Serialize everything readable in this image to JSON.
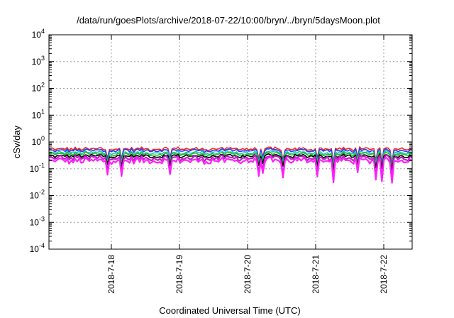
{
  "chart_data": {
    "type": "line",
    "title": "/data/run/goesPlots/archive/2018-07-22/10:00/bryn/../bryn/5daysMoon.plot",
    "xlabel": "Coordinated Universal Time (UTC)",
    "ylabel": "cSv/day",
    "y_scale": "log",
    "ylim": [
      0.0001,
      10000
    ],
    "y_tick_labels": [
      {
        "base": "10",
        "exp": "4"
      },
      {
        "base": "10",
        "exp": "3"
      },
      {
        "base": "10",
        "exp": "2"
      },
      {
        "base": "10",
        "exp": "1"
      },
      {
        "base": "10",
        "exp": "0"
      },
      {
        "base": "10",
        "exp": "-1"
      },
      {
        "base": "10",
        "exp": "-2"
      },
      {
        "base": "10",
        "exp": "-3"
      },
      {
        "base": "10",
        "exp": "-4"
      }
    ],
    "xlim": [
      "2018-07-17T02:00",
      "2018-07-22T10:00"
    ],
    "x_ticks": [
      "2018-7-18",
      "2018-7-19",
      "2018-7-20",
      "2018-7-21",
      "2018-7-22"
    ],
    "grid": true,
    "legend": "none",
    "series": [
      {
        "color": "#ff2020",
        "level": 0.55
      },
      {
        "color": "#2040ff",
        "level": 0.48
      },
      {
        "color": "#20c0c0",
        "level": 0.4
      },
      {
        "color": "#20c020",
        "level": 0.35
      },
      {
        "color": "#000000",
        "level": 0.3
      },
      {
        "color": "#c020c0",
        "level": 0.25
      },
      {
        "color": "#ff20ff",
        "level": 0.2
      }
    ]
  }
}
